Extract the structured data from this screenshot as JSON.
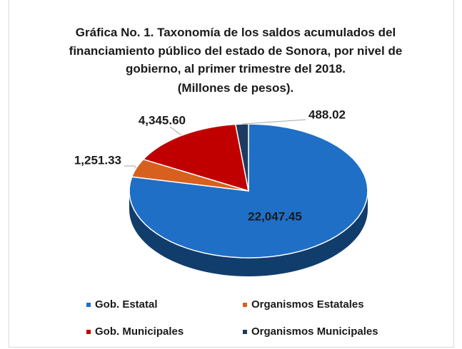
{
  "chart_data": {
    "type": "pie3d",
    "title": "Gráfica No. 1. Taxonomía de los saldos acumulados del financiamiento público del estado de Sonora, por nivel de gobierno, al primer trimestre del 2018.",
    "subtitle": "(Millones de pesos).",
    "categories": [
      "Gob. Estatal",
      "Organismos Estatales",
      "Gob. Municipales",
      "Organismos Municipales"
    ],
    "values": [
      22047.45,
      1251.33,
      4345.6,
      488.02
    ],
    "value_labels": [
      "22,047.45",
      "1,251.33",
      "4,345.60",
      "488.02"
    ],
    "colors": [
      "#1f6fc6",
      "#d8601e",
      "#c00000",
      "#1f3a5f"
    ],
    "legend": "bottom"
  }
}
